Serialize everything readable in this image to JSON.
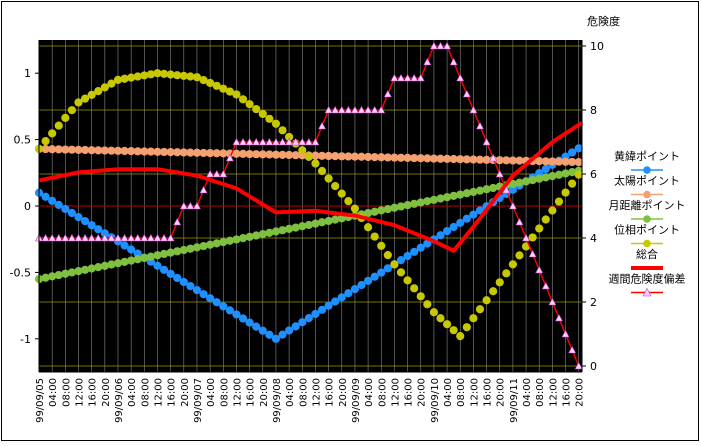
{
  "chart_data": {
    "type": "line",
    "y_right_title": "危険度",
    "y_left": {
      "min": -1.25,
      "max": 1.25,
      "ticks": [
        -1,
        -0.5,
        0,
        0.5,
        1
      ]
    },
    "y_right": {
      "min": 0,
      "max": 10,
      "ticks": [
        0,
        2,
        4,
        6,
        8,
        10
      ]
    },
    "time_axis": {
      "start": "1999-09-05T00:00",
      "end": "1999-09-11T20:00",
      "step_hours": 4,
      "date_format": "99/09/DD",
      "time_labels": [
        "04:00",
        "08:00",
        "12:00",
        "16:00",
        "20:00"
      ]
    },
    "grid": true,
    "legend_position": "right",
    "colors": {
      "plot_bg": "#000000",
      "grid_h": "#9a9a00",
      "grid_v": "#8a8a8a",
      "zero_line": "#c00000"
    },
    "series": [
      {
        "name": "黄緯ポイント",
        "axis": "left",
        "marker": "circle",
        "color": "#1e90ff",
        "points": [
          [
            "1999-09-05T00:00",
            0.1
          ],
          [
            "1999-09-08T00:00",
            -1.0
          ],
          [
            "1999-09-11T21:00",
            0.45
          ]
        ]
      },
      {
        "name": "太陽ポイント",
        "axis": "left",
        "marker": "circle",
        "color": "#f4a070",
        "points": [
          [
            "1999-09-05T00:00",
            0.43
          ],
          [
            "1999-09-11T21:00",
            0.33
          ]
        ]
      },
      {
        "name": "月距離ポイント",
        "axis": "left",
        "marker": "circle",
        "color": "#80c040",
        "points": [
          [
            "1999-09-05T00:00",
            -0.55
          ],
          [
            "1999-09-11T21:00",
            0.27
          ]
        ]
      },
      {
        "name": "位相ポイント",
        "axis": "left",
        "marker": "circle",
        "color": "#c8c800",
        "points": [
          [
            "1999-09-05T00:00",
            0.43
          ],
          [
            "1999-09-05T12:00",
            0.78
          ],
          [
            "1999-09-06T00:00",
            0.95
          ],
          [
            "1999-09-06T12:00",
            1.0
          ],
          [
            "1999-09-07T00:00",
            0.97
          ],
          [
            "1999-09-07T12:00",
            0.84
          ],
          [
            "1999-09-08T00:00",
            0.62
          ],
          [
            "1999-09-08T12:00",
            0.32
          ],
          [
            "1999-09-09T00:00",
            -0.02
          ],
          [
            "1999-09-09T12:00",
            -0.44
          ],
          [
            "1999-09-10T00:00",
            -0.8
          ],
          [
            "1999-09-10T08:00",
            -0.98
          ],
          [
            "1999-09-11T21:00",
            0.27
          ]
        ]
      },
      {
        "name": "総合",
        "axis": "right",
        "marker": "none",
        "color": "#ff0000",
        "points": [
          [
            "1999-09-05T00:00",
            5.8
          ],
          [
            "1999-09-05T12:00",
            6.05
          ],
          [
            "1999-09-06T00:00",
            6.15
          ],
          [
            "1999-09-06T12:00",
            6.15
          ],
          [
            "1999-09-07T00:00",
            5.95
          ],
          [
            "1999-09-07T12:00",
            5.55
          ],
          [
            "1999-09-08T00:00",
            4.8
          ],
          [
            "1999-09-08T12:00",
            4.85
          ],
          [
            "1999-09-09T00:00",
            4.7
          ],
          [
            "1999-09-09T12:00",
            4.4
          ],
          [
            "1999-09-10T00:00",
            3.9
          ],
          [
            "1999-09-10T06:00",
            3.6
          ],
          [
            "1999-09-10T12:00",
            4.35
          ],
          [
            "1999-09-11T00:00",
            5.95
          ],
          [
            "1999-09-11T12:00",
            7.0
          ],
          [
            "1999-09-11T21:00",
            7.6
          ]
        ]
      },
      {
        "name": "週間危険度偏差",
        "axis": "right",
        "marker": "triangle",
        "color": "#ff0000",
        "marker_color": "#ffd0ff",
        "points": [
          [
            "1999-09-05T00:00",
            4.0
          ],
          [
            "1999-09-05T04:00",
            4.0
          ],
          [
            "1999-09-05T08:00",
            4.0
          ],
          [
            "1999-09-05T12:00",
            4.0
          ],
          [
            "1999-09-05T16:00",
            4.0
          ],
          [
            "1999-09-05T20:00",
            4.0
          ],
          [
            "1999-09-06T00:00",
            4.0
          ],
          [
            "1999-09-06T04:00",
            4.0
          ],
          [
            "1999-09-06T08:00",
            4.0
          ],
          [
            "1999-09-06T12:00",
            4.0
          ],
          [
            "1999-09-06T16:00",
            4.0
          ],
          [
            "1999-09-06T20:00",
            5.0
          ],
          [
            "1999-09-07T00:00",
            5.0
          ],
          [
            "1999-09-07T04:00",
            6.0
          ],
          [
            "1999-09-07T08:00",
            6.0
          ],
          [
            "1999-09-07T12:00",
            7.0
          ],
          [
            "1999-09-07T16:00",
            7.0
          ],
          [
            "1999-09-07T20:00",
            7.0
          ],
          [
            "1999-09-08T00:00",
            7.0
          ],
          [
            "1999-09-08T04:00",
            7.0
          ],
          [
            "1999-09-08T08:00",
            7.0
          ],
          [
            "1999-09-08T12:00",
            7.0
          ],
          [
            "1999-09-08T16:00",
            8.0
          ],
          [
            "1999-09-08T20:00",
            8.0
          ],
          [
            "1999-09-09T00:00",
            8.0
          ],
          [
            "1999-09-09T04:00",
            8.0
          ],
          [
            "1999-09-09T08:00",
            8.0
          ],
          [
            "1999-09-09T12:00",
            9.0
          ],
          [
            "1999-09-09T16:00",
            9.0
          ],
          [
            "1999-09-09T20:00",
            9.0
          ],
          [
            "1999-09-10T00:00",
            10.0
          ],
          [
            "1999-09-10T04:00",
            10.0
          ],
          [
            "1999-09-10T08:00",
            9.0
          ],
          [
            "1999-09-10T12:00",
            8.0
          ],
          [
            "1999-09-10T16:00",
            7.0
          ],
          [
            "1999-09-10T20:00",
            6.0
          ],
          [
            "1999-09-11T00:00",
            5.0
          ],
          [
            "1999-09-11T04:00",
            4.0
          ],
          [
            "1999-09-11T08:00",
            3.0
          ],
          [
            "1999-09-11T12:00",
            2.0
          ],
          [
            "1999-09-11T16:00",
            1.0
          ],
          [
            "1999-09-11T20:00",
            0.0
          ]
        ]
      }
    ]
  }
}
